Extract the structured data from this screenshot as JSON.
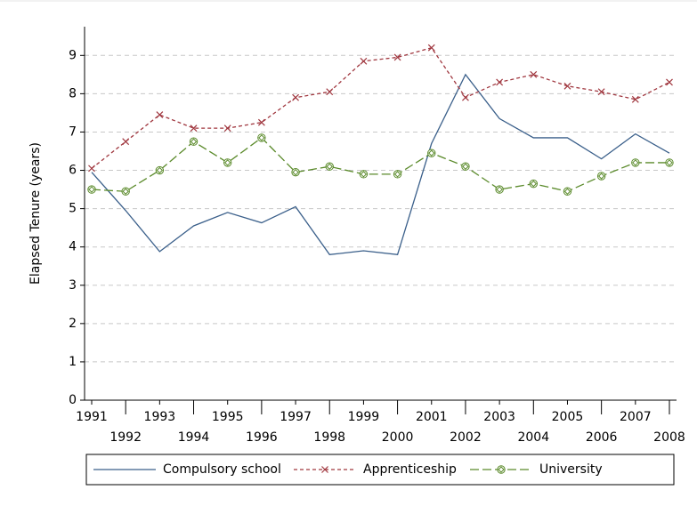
{
  "chart_data": {
    "type": "line",
    "ylabel": "Elapsed Tenure (years)",
    "x": [
      1991,
      1992,
      1993,
      1994,
      1995,
      1996,
      1997,
      1998,
      1999,
      2000,
      2001,
      2002,
      2003,
      2004,
      2005,
      2006,
      2007,
      2008
    ],
    "xlim": [
      1991,
      2008
    ],
    "xticks": [
      1991,
      1992,
      1993,
      1994,
      1995,
      1996,
      1997,
      1998,
      1999,
      2000,
      2001,
      2002,
      2003,
      2004,
      2005,
      2006,
      2007,
      2008
    ],
    "ylim": [
      0,
      9.75
    ],
    "yticks": [
      0,
      1,
      2,
      3,
      4,
      5,
      6,
      7,
      8,
      9
    ],
    "grid": true,
    "legend": "bottom",
    "series": [
      {
        "name": "Compulsory school",
        "color": "#3a5f8a",
        "marker": "none",
        "values": [
          5.95,
          4.95,
          3.88,
          4.55,
          4.9,
          4.63,
          5.05,
          3.8,
          3.9,
          3.8,
          6.7,
          8.5,
          7.35,
          6.85,
          6.85,
          6.3,
          6.95,
          6.45
        ]
      },
      {
        "name": "Apprenticeship",
        "color": "#a0373f",
        "marker": "x",
        "values": [
          6.05,
          6.75,
          7.45,
          7.1,
          7.1,
          7.25,
          7.9,
          8.05,
          8.85,
          8.95,
          9.2,
          7.9,
          8.3,
          8.5,
          8.2,
          8.05,
          7.85,
          8.3
        ]
      },
      {
        "name": "University",
        "color": "#5a8a2a",
        "marker": "diamond",
        "values": [
          5.5,
          5.45,
          6.0,
          6.75,
          6.2,
          6.85,
          5.95,
          6.1,
          5.9,
          5.9,
          6.45,
          6.1,
          5.5,
          5.65,
          5.45,
          5.85,
          6.2,
          6.2
        ]
      }
    ]
  }
}
